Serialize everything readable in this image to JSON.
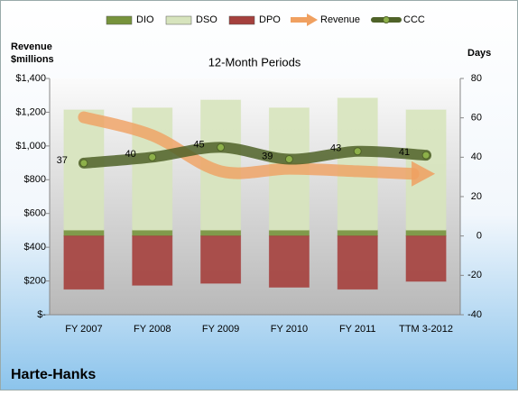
{
  "chart_data": {
    "type": "combo",
    "title": "12-Month Periods",
    "y_label": [
      "Revenue",
      "$millions"
    ],
    "y2_label": "Days",
    "footer": "Harte-Hanks",
    "categories": [
      "FY 2007",
      "FY 2008",
      "FY 2009",
      "FY 2010",
      "FY 2011",
      "TTM 3-2012"
    ],
    "ylim": [
      0,
      1400
    ],
    "yticks": [
      {
        "value": 0,
        "label": "$-"
      },
      {
        "value": 200,
        "label": "$200"
      },
      {
        "value": 400,
        "label": "$400"
      },
      {
        "value": 600,
        "label": "$600"
      },
      {
        "value": 800,
        "label": "$800"
      },
      {
        "value": 1000,
        "label": "$1,000"
      },
      {
        "value": 1200,
        "label": "$1,200"
      },
      {
        "value": 1400,
        "label": "$1,400"
      }
    ],
    "y2lim": [
      -40,
      80
    ],
    "y2ticks": [
      -40,
      -20,
      0,
      20,
      40,
      60,
      80
    ],
    "series": [
      {
        "name": "DIO",
        "type": "bar",
        "axis": "y2",
        "color": "#77933c",
        "values": [
          3,
          3,
          3,
          3,
          3,
          3
        ]
      },
      {
        "name": "DSO",
        "type": "bar",
        "axis": "y2",
        "color": "#d7e4bd",
        "values": [
          61,
          62,
          66,
          62,
          67,
          61
        ]
      },
      {
        "name": "DPO",
        "type": "bar",
        "axis": "y2",
        "color": "#a5403d",
        "values": [
          -27,
          -25,
          -24,
          -26,
          -27,
          -23
        ]
      },
      {
        "name": "Revenue",
        "type": "line",
        "axis": "y",
        "color": "#f0a060",
        "values": [
          1170,
          1063,
          850,
          865,
          850,
          835
        ]
      },
      {
        "name": "CCC",
        "type": "line",
        "axis": "y2",
        "color": "#4f6228",
        "values": [
          37,
          40,
          45,
          39,
          43,
          41
        ],
        "labels": true
      }
    ]
  }
}
